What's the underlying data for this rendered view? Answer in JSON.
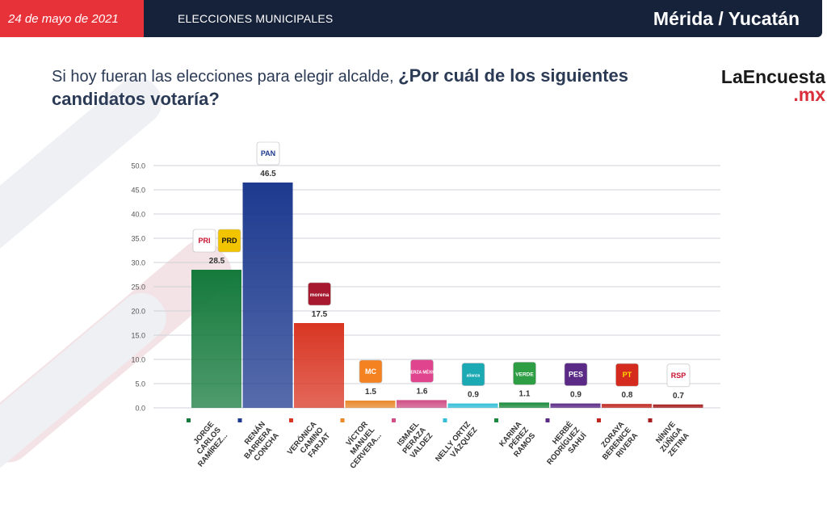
{
  "header": {
    "date": "24 de mayo de 2021",
    "section": "ELECCIONES MUNICIPALES",
    "location": "Mérida / Yucatán"
  },
  "question": {
    "part1": "Si hoy fueran las elecciones para elegir alcalde,",
    "part2": "¿Por cuál de los siguientes candidatos votaría?"
  },
  "brand": {
    "name": "LaEncuesta",
    "tld": ".mx"
  },
  "colors": {
    "header_bg": "#16213a",
    "accent_red": "#e8323a"
  },
  "chart_data": {
    "type": "bar",
    "ylim": [
      0,
      50
    ],
    "yticks": [
      "0.0",
      "5.0",
      "10.0",
      "15.0",
      "20.0",
      "25.0",
      "30.0",
      "35.0",
      "40.0",
      "45.0",
      "50.0"
    ],
    "grid": true,
    "categories": [
      [
        "JORGE",
        "CARLOS",
        "RAMÍREZ..."
      ],
      [
        "RENÁN",
        "BARRERA",
        "CONCHA"
      ],
      [
        "VERÓNICA",
        "CAMINO",
        "FARJAT"
      ],
      [
        "VÍCTOR",
        "MANUEL",
        "CERVERA..."
      ],
      [
        "ISMAEL",
        "PERAZA",
        "VALDEZ"
      ],
      [
        "NELLY ORTIZ",
        "VÁZQUEZ"
      ],
      [
        "KARINA",
        "PÉREZ",
        "RAMOS"
      ],
      [
        "HERBÉ",
        "RODRÍGUEZ",
        "SAHUÍ"
      ],
      [
        "ZORAYA",
        "BERENICE",
        "RIVERA"
      ],
      [
        "NÍNIVE",
        "ZÚÑIGA",
        "ZETINA"
      ]
    ],
    "values": [
      28.5,
      46.5,
      17.5,
      1.5,
      1.6,
      0.9,
      1.1,
      0.9,
      0.8,
      0.7
    ],
    "value_labels": [
      "28.5",
      "46.5",
      "17.5",
      "1.5",
      "1.6",
      "0.9",
      "1.1",
      "0.9",
      "0.8",
      "0.7"
    ],
    "bar_colors": [
      "#157a3c",
      "#1d3a8f",
      "#d93623",
      "#e8892a",
      "#cf4f86",
      "#35bfd6",
      "#1c8a3e",
      "#5b2a86",
      "#c0271f",
      "#a51d1d"
    ],
    "party_logos": [
      [
        {
          "text": "PRI",
          "bg": "#ffffff",
          "fg": "#c8102e"
        },
        {
          "text": "PRD",
          "bg": "#f2c400",
          "fg": "#111111"
        }
      ],
      [
        {
          "text": "PAN",
          "bg": "#ffffff",
          "fg": "#1d3a8f"
        }
      ],
      [
        {
          "text": "morena",
          "bg": "#a6192e",
          "fg": "#ffffff"
        }
      ],
      [
        {
          "text": "MC",
          "bg": "#f58220",
          "fg": "#ffffff"
        }
      ],
      [
        {
          "text": "FUERZA MÉXICO",
          "bg": "#e1448f",
          "fg": "#ffffff"
        }
      ],
      [
        {
          "text": "alianza",
          "bg": "#1ba9b3",
          "fg": "#ffffff"
        }
      ],
      [
        {
          "text": "VERDE",
          "bg": "#2e9e45",
          "fg": "#ffffff"
        }
      ],
      [
        {
          "text": "PES",
          "bg": "#5b2a86",
          "fg": "#ffffff"
        }
      ],
      [
        {
          "text": "PT",
          "bg": "#d52b1e",
          "fg": "#ffdd00"
        }
      ],
      [
        {
          "text": "RSP",
          "bg": "#ffffff",
          "fg": "#c8102e"
        }
      ]
    ]
  }
}
